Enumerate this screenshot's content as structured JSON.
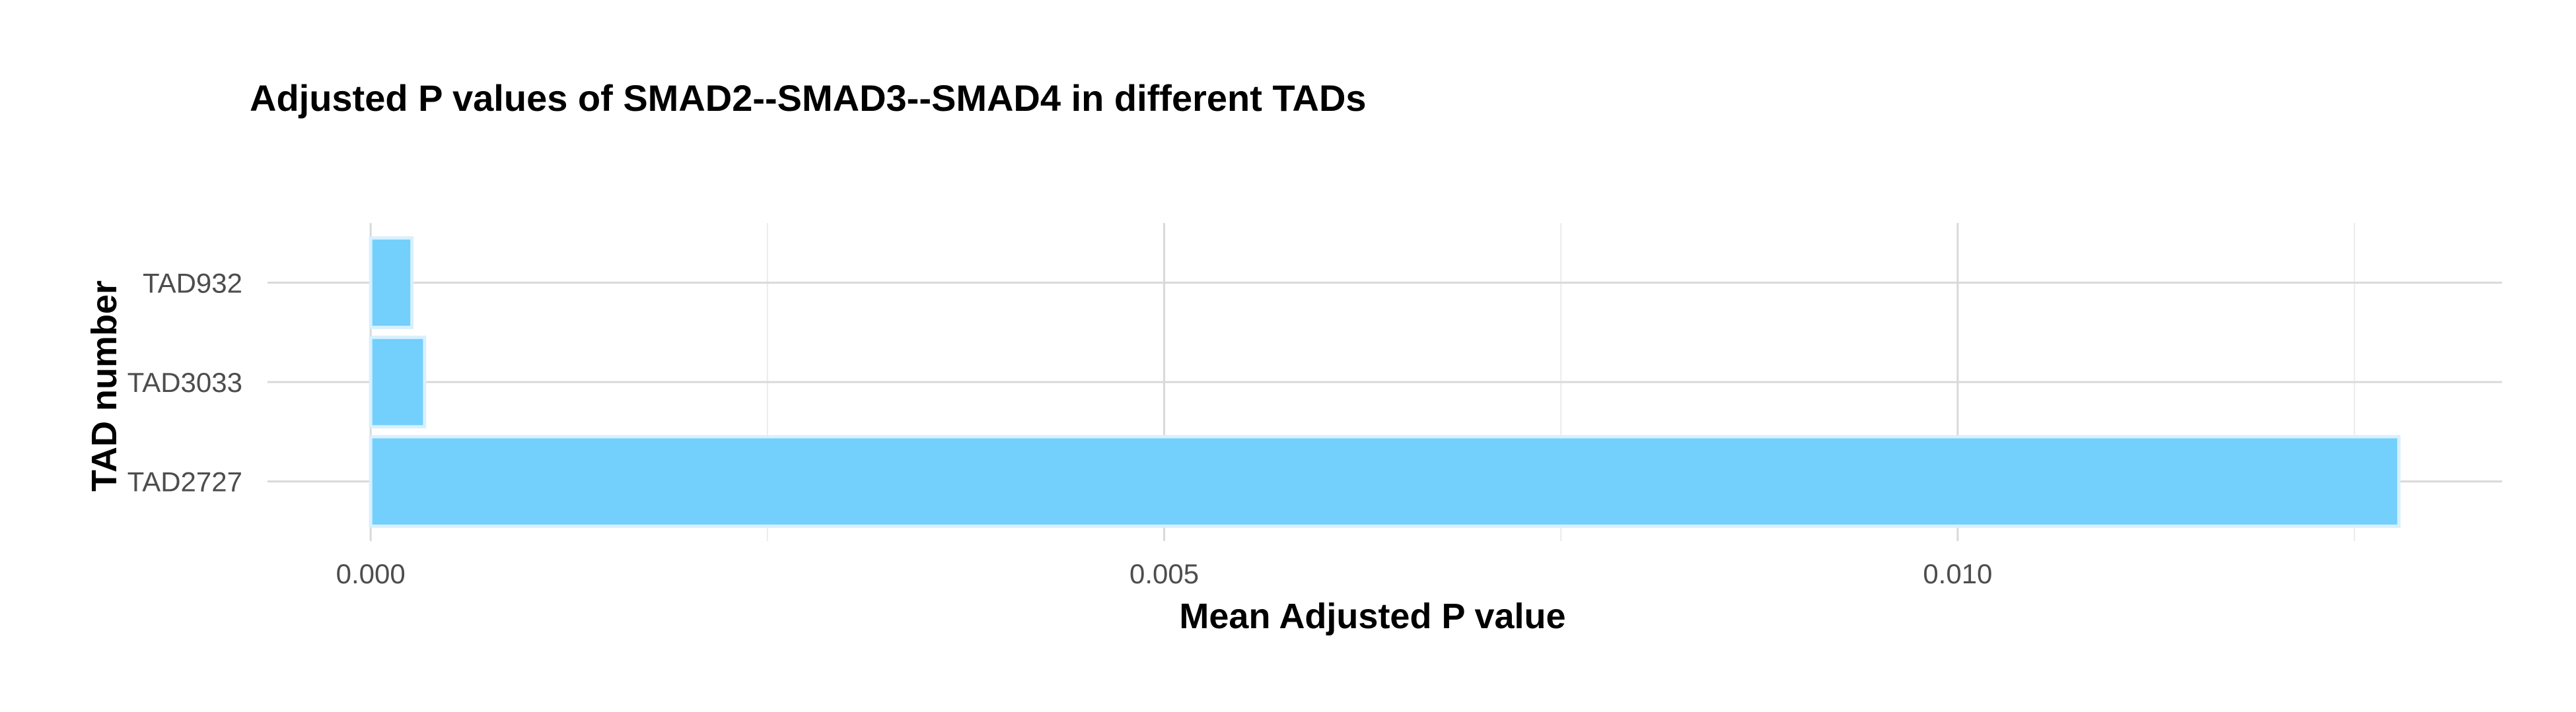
{
  "chart_data": {
    "type": "bar",
    "orientation": "horizontal",
    "title": "Adjusted P values of SMAD2--SMAD3--SMAD4 in different TADs",
    "xlabel": "Mean Adjusted P value",
    "ylabel": "TAD number",
    "categories": [
      "TAD2727",
      "TAD3033",
      "TAD932"
    ],
    "values": [
      0.01278,
      0.00034,
      0.00026
    ],
    "xlim": [
      -0.00065,
      0.01343
    ],
    "x_ticks": [
      0.0,
      0.005,
      0.01
    ],
    "x_tick_labels": [
      "0.000",
      "0.005",
      "0.010"
    ],
    "grid": true,
    "bar_color": "#73CFFC",
    "bar_edge_color": "#D8F0FE"
  }
}
